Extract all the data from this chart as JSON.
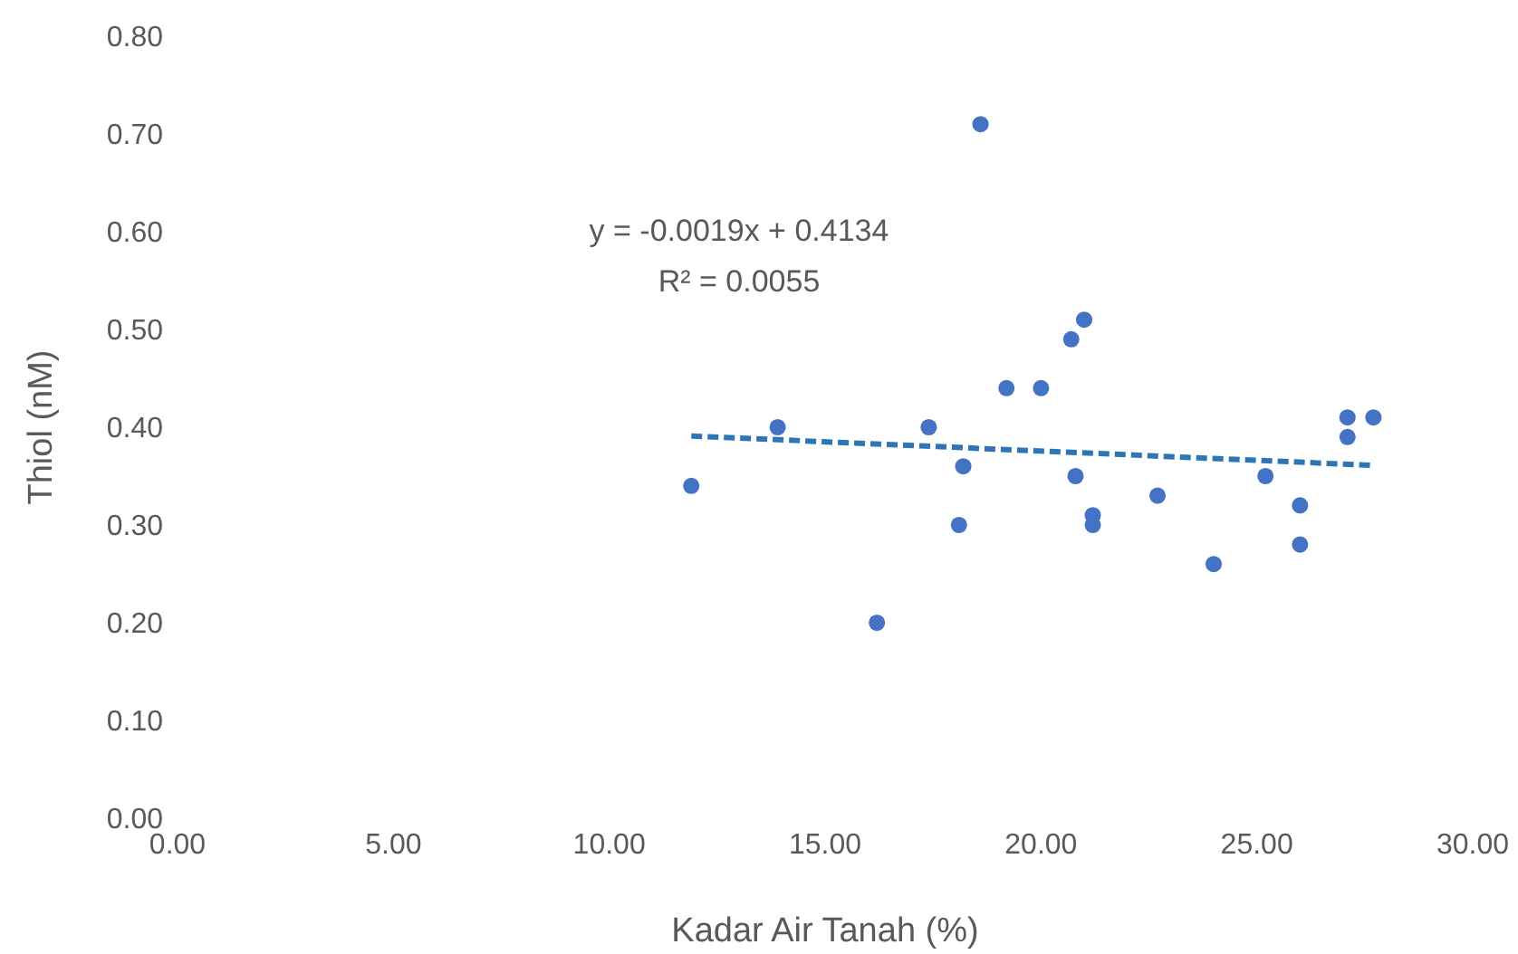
{
  "chart_data": {
    "type": "scatter",
    "xlabel": "Kadar Air Tanah (%)",
    "ylabel": "Thiol (nM)",
    "annotations": [
      "y = -0.0019x + 0.4134",
      "R² = 0.0055"
    ],
    "xlim": [
      0,
      30
    ],
    "xticks": [
      {
        "value": 0,
        "label": "0.00"
      },
      {
        "value": 5,
        "label": "5.00"
      },
      {
        "value": 10,
        "label": "10.00"
      },
      {
        "value": 15,
        "label": "15.00"
      },
      {
        "value": 20,
        "label": "20.00"
      },
      {
        "value": 25,
        "label": "25.00"
      },
      {
        "value": 30,
        "label": "30.00"
      }
    ],
    "ylim": [
      0,
      0.8
    ],
    "yticks": [
      {
        "value": 0,
        "label": "0.00"
      },
      {
        "value": 0.1,
        "label": "0.10"
      },
      {
        "value": 0.2,
        "label": "0.20"
      },
      {
        "value": 0.3,
        "label": "0.30"
      },
      {
        "value": 0.4,
        "label": "0.40"
      },
      {
        "value": 0.5,
        "label": "0.50"
      },
      {
        "value": 0.6,
        "label": "0.60"
      },
      {
        "value": 0.7,
        "label": "0.70"
      },
      {
        "value": 0.8,
        "label": "0.80"
      }
    ],
    "grid": false,
    "marker": "circle",
    "series": [
      {
        "type": "scatter",
        "color": "#4472c4",
        "x": [
          11.9,
          13.9,
          16.2,
          17.4,
          18.6,
          18.2,
          18.1,
          19.2,
          20.0,
          20.7,
          21.0,
          20.8,
          21.2,
          21.2,
          22.7,
          24.0,
          25.2,
          26.0,
          26.0,
          27.1,
          27.1,
          27.7
        ],
        "values": [
          0.34,
          0.4,
          0.2,
          0.4,
          0.71,
          0.36,
          0.3,
          0.44,
          0.44,
          0.49,
          0.51,
          0.35,
          0.31,
          0.3,
          0.33,
          0.26,
          0.35,
          0.32,
          0.28,
          0.41,
          0.39,
          0.41
        ]
      },
      {
        "type": "line",
        "color": "#2e75b6",
        "line_style": "dashed",
        "marker": "none",
        "x": [
          11.9,
          27.7
        ],
        "values": [
          0.391,
          0.361
        ]
      }
    ]
  }
}
